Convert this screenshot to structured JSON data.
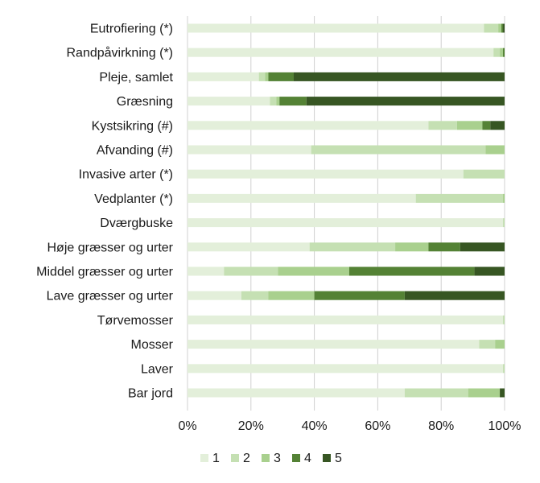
{
  "chart_data": {
    "type": "bar",
    "orientation": "horizontal",
    "stacked": true,
    "percent": true,
    "title": "",
    "xlabel": "",
    "ylabel": "",
    "xlim": [
      0,
      100
    ],
    "x_ticks": [
      "0%",
      "20%",
      "40%",
      "60%",
      "80%",
      "100%"
    ],
    "grid": "vertical",
    "legend_position": "bottom",
    "categories": [
      "Eutrofiering (*)",
      "Randpåvirkning (*)",
      "Pleje, samlet",
      "Græsning",
      "Kystsikring (#)",
      "Afvanding (#)",
      "Invasive arter (*)",
      "Vedplanter (*)",
      "Dværgbuske",
      "Høje græsser og urter",
      "Middel græsser og urter",
      "Lave græsser og urter",
      "Tørvemosser",
      "Mosser",
      "Laver ",
      "Bar jord"
    ],
    "series": [
      {
        "name": "1",
        "color": "#e3efda",
        "values": [
          93.5,
          96.5,
          22.5,
          26,
          76,
          39,
          87,
          72,
          99.5,
          38.5,
          11.5,
          17,
          99.5,
          92,
          99.5,
          68.5
        ]
      },
      {
        "name": "2",
        "color": "#c5e0b3",
        "values": [
          4.5,
          2,
          2,
          2,
          9,
          55,
          13,
          27.5,
          0.5,
          27,
          17,
          8.5,
          0.5,
          5,
          0.5,
          20
        ]
      },
      {
        "name": "3",
        "color": "#a9d08e",
        "values": [
          1,
          1,
          1,
          1,
          8,
          6,
          0,
          0.5,
          0,
          10.5,
          22.5,
          14.5,
          0,
          3,
          0,
          10
        ]
      },
      {
        "name": "4",
        "color": "#548235",
        "values": [
          0.5,
          0.5,
          8,
          8.5,
          2.5,
          0,
          0,
          0,
          0,
          10,
          39.5,
          28.5,
          0,
          0,
          0,
          0
        ]
      },
      {
        "name": "5",
        "color": "#375623",
        "values": [
          0.5,
          0,
          66.5,
          62.5,
          4.5,
          0,
          0,
          0,
          0,
          14,
          9.5,
          31.5,
          0,
          0,
          0,
          1.5
        ]
      }
    ]
  }
}
